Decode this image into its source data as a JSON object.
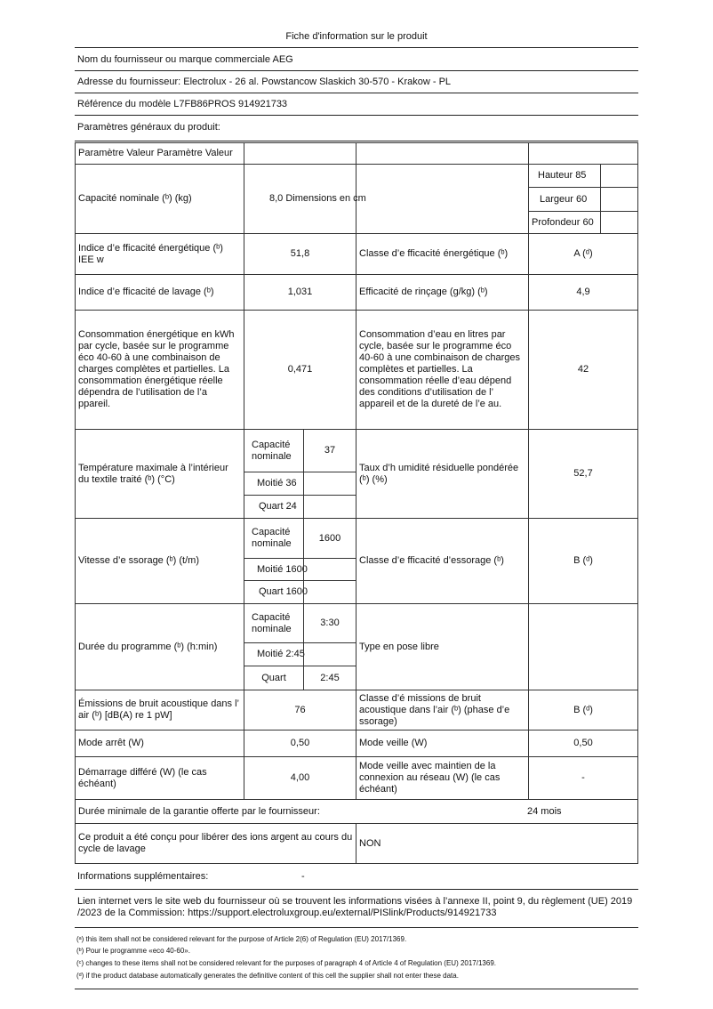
{
  "title": "Fiche d'information sur le produit",
  "supplier": "Nom du fournisseur ou marque commerciale AEG",
  "address": "Adresse du fournisseur: Electrolux - 26 al. Powstancow Slaskich 30-570 - Krakow - PL",
  "model": "Référence du modèle L7FB86PROS 914921733",
  "general": "Paramètres généraux du produit:",
  "header": "Paramètre Valeur Paramètre Valeur",
  "capacity": {
    "label": "Capacité nominale (ᵇ) (kg)",
    "value": "8,0 Dimensions en cm",
    "height": "Hauteur 85",
    "width": "Largeur 60",
    "depth": "Profondeur 60"
  },
  "iee": {
    "label": "Indice d’e fficacité énergétique (ᵇ) IEE w",
    "value": "51,8",
    "class_label": "Classe d’e fficacité énergétique (ᵇ)",
    "class_value": "A (ᵈ)"
  },
  "wash": {
    "label": "Indice d’e fficacité de lavage (ᵇ)",
    "value": "1,031",
    "rinse_label": "Efficacité de rinçage (g/kg) (ᵇ)",
    "rinse_value": "4,9"
  },
  "energy": {
    "label": "Consommation énergétique en kWh par cycle, basée sur le programme éco 40-60 à une combinaison de charges complètes et partielles. La consommation énergétique réelle dépendra de l’utilisation de l’a ppareil.",
    "value": "0,471",
    "water_label": "Consommation d’eau en litres par cycle, basée sur le programme éco 40-60 à une combinaison de charges complètes et partielles. La consommation réelle d’eau dépend des conditions d’utilisation de l’ appareil et de la dureté de l’e au.",
    "water_value": "42"
  },
  "temp": {
    "label": "Température maximale à l’intérieur du textile traité (ᵇ) (°C)",
    "full": "Capacité nominale",
    "full_value": "37",
    "half": "Moitié 36",
    "quarter": "Quart 24",
    "hum_label": "Taux d’h umidité résiduelle pondérée (ᵇ) (%)",
    "hum_value": "52,7"
  },
  "spin": {
    "label": "Vitesse d’e ssorage (ᵇ) (t/m)",
    "full": "Capacité nominale",
    "full_value": "1600",
    "half": "Moitié 1600",
    "quarter": "Quart 1600",
    "class_label": "Classe d’e fficacité d’essorage (ᵇ)",
    "class_value": "B (ᵈ)"
  },
  "duration": {
    "label": "Durée du programme (ᵇ) (h:min)",
    "full": "Capacité nominale",
    "full_value": "3:30",
    "half": "Moitié 2:45",
    "quarter": "Quart",
    "quarter_value": "2:45",
    "type": "Type en pose libre"
  },
  "noise": {
    "label": "Émissions de bruit acoustique dans l’ air (ᵇ) [dB(A) re 1 pW]",
    "value": "76",
    "class_label": "Classe d’é missions de bruit acoustique dans l’air (ᵇ) (phase d’e ssorage)",
    "class_value": "B (ᵈ)"
  },
  "off": {
    "label": "Mode arrêt (W)",
    "value": "0,50",
    "standby_label": "Mode veille (W)",
    "standby_value": "0,50"
  },
  "delay": {
    "label": "Démarrage différé (W) (le cas échéant)",
    "value": "4,00",
    "net_label": "Mode veille avec maintien de la connexion au réseau (W) (le cas échéant)",
    "net_value": "-"
  },
  "warranty": {
    "label": "Durée minimale de la garantie offerte par le fournisseur:",
    "value": "24 mois"
  },
  "ions": {
    "label": "Ce produit a été conçu pour libérer des ions argent au cours du cycle de lavage",
    "value": "NON"
  },
  "extra": {
    "label": "Informations supplémentaires:",
    "value": "-"
  },
  "link": "Lien internet vers le site web du fournisseur où se trouvent les informations visées à l’annexe II, point 9, du règlement (UE) 2019 /2023 de la Commission: https://support.electroluxgroup.eu/external/PISlink/Products/914921733",
  "footnotes": [
    "(ᵃ) this item shall not be considered relevant for the purpose of Article 2(6) of Regulation (EU) 2017/1369.",
    "(ᵇ) Pour le programme «eco 40-60».",
    "(ᶜ) changes to these items shall not be considered relevant for the purposes of paragraph 4 of Article 4 of Regulation (EU) 2017/1369.",
    "(ᵈ) if the product database automatically generates the definitive content of this cell the supplier shall not enter these data."
  ]
}
